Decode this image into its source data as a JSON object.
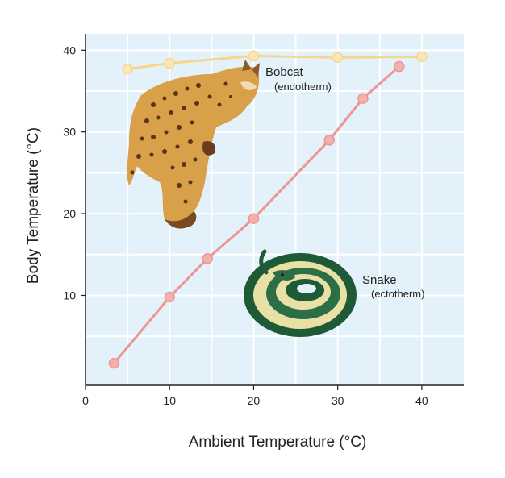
{
  "chart_data": {
    "type": "line",
    "xlabel": "Ambient Temperature (°C)",
    "ylabel": "Body Temperature (°C)",
    "xlim": [
      0,
      45
    ],
    "ylim": [
      -1,
      42
    ],
    "xticks": [
      0,
      10,
      20,
      30,
      40
    ],
    "yticks": [
      10,
      20,
      30,
      40
    ],
    "grid": true,
    "series": [
      {
        "name": "Bobcat",
        "subtitle": "(endotherm)",
        "color": "#f6d68c",
        "x": [
          5,
          10,
          20,
          30,
          40
        ],
        "y": [
          37.7,
          38.4,
          39.3,
          39.1,
          39.2
        ]
      },
      {
        "name": "Snake",
        "subtitle": "(ectotherm)",
        "color": "#ee9693",
        "x": [
          3.4,
          10,
          14.5,
          20,
          29,
          33,
          37.3
        ],
        "y": [
          1.7,
          9.8,
          14.5,
          19.4,
          29,
          34.1,
          38
        ]
      }
    ]
  },
  "colors": {
    "plot_background": "#e3f2fa",
    "grid": "#ffffff",
    "axis": "#222222",
    "bobcat_marker_fill": "#fbe6b4",
    "snake_marker_fill": "#f4b0ad"
  }
}
